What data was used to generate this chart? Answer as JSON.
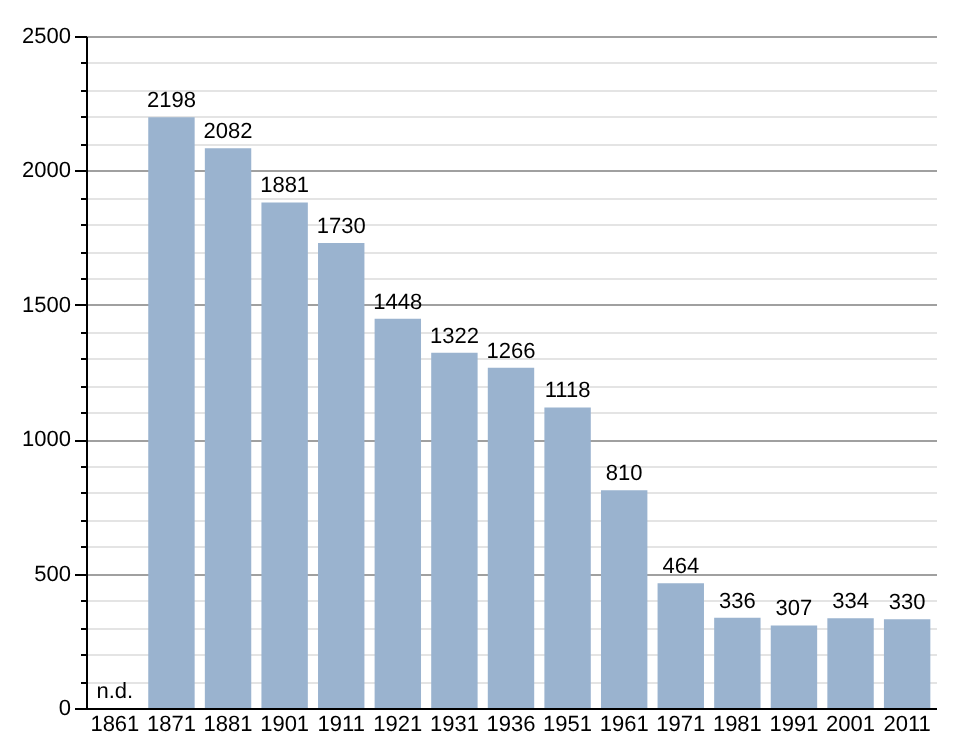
{
  "chart_data": {
    "type": "bar",
    "categories": [
      "1861",
      "1871",
      "1881",
      "1901",
      "1911",
      "1921",
      "1931",
      "1936",
      "1951",
      "1961",
      "1971",
      "1981",
      "1991",
      "2001",
      "2011"
    ],
    "values": [
      null,
      2198,
      2082,
      1881,
      1730,
      1448,
      1322,
      1266,
      1118,
      810,
      464,
      336,
      307,
      334,
      330
    ],
    "value_labels": [
      "n.d.",
      "2198",
      "2082",
      "1881",
      "1730",
      "1448",
      "1322",
      "1266",
      "1118",
      "810",
      "464",
      "336",
      "307",
      "334",
      "330"
    ],
    "color": "#9ab3cf",
    "ylim": [
      0,
      2500
    ],
    "yticks": [
      0,
      {
        "value": 100,
        "label": null
      },
      {
        "value": 200,
        "label": null
      },
      {
        "value": 300,
        "label": null
      },
      {
        "value": 400,
        "label": null
      },
      500,
      {
        "value": 600,
        "label": null
      },
      {
        "value": 700,
        "label": null
      },
      {
        "value": 800,
        "label": null
      },
      {
        "value": 900,
        "label": null
      },
      1000,
      {
        "value": 1100,
        "label": null
      },
      {
        "value": 1200,
        "label": null
      },
      {
        "value": 1300,
        "label": null
      },
      {
        "value": 1400,
        "label": null
      },
      1500,
      {
        "value": 1600,
        "label": null
      },
      {
        "value": 1700,
        "label": null
      },
      {
        "value": 1800,
        "label": null
      },
      {
        "value": 1900,
        "label": null
      },
      2000,
      {
        "value": 2100,
        "label": null
      },
      {
        "value": 2200,
        "label": null
      },
      {
        "value": 2300,
        "label": null
      },
      {
        "value": 2400,
        "label": null
      },
      2500
    ],
    "grid": true
  }
}
